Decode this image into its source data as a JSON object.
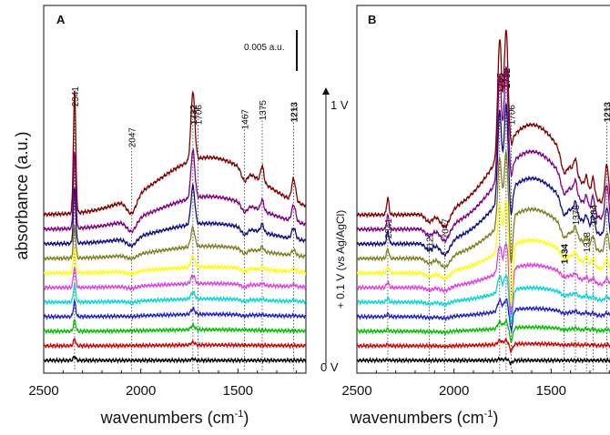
{
  "figure": {
    "ylabel": "absorbance (a.u.)",
    "potential_axis_label": "+ 0.1 V (vs Ag/AgCl)",
    "potential_top": "1 V",
    "potential_bottom": "0 V",
    "scale_bar_label": "0.005 a.u."
  },
  "chart_data": [
    {
      "type": "line",
      "panel_label": "A",
      "xlabel": "wavenumbers (cm",
      "xlabel_sup": "-1",
      "xlabel_close": ")",
      "xlim": [
        2500,
        1150
      ],
      "x_ticks": [
        2500,
        2000,
        1500
      ],
      "peak_labels": [
        {
          "text": "2341",
          "x": 2341,
          "bold": false
        },
        {
          "text": "2047",
          "x": 2047,
          "bold": false
        },
        {
          "text": "1732",
          "x": 1732,
          "bold": true
        },
        {
          "text": "1706",
          "x": 1706,
          "bold": false
        },
        {
          "text": "1467",
          "x": 1467,
          "bold": false
        },
        {
          "text": "1375",
          "x": 1375,
          "bold": false
        },
        {
          "text": "1213",
          "x": 1213,
          "bold": true
        }
      ],
      "series_colors": [
        "#000000",
        "#d40000",
        "#00c000",
        "#2020cc",
        "#00d8d8",
        "#e040e0",
        "#ffff00",
        "#808020",
        "#101080",
        "#800080",
        "#800000"
      ],
      "peaks": [
        {
          "x": 2341,
          "width": 6,
          "amp": [
            0.3,
            0.5,
            0.8,
            1.1,
            1.3,
            1.5,
            1.8,
            2.4,
            4.0,
            5.5,
            9.0
          ]
        },
        {
          "x": 1732,
          "width": 10,
          "amp": [
            0.1,
            0.2,
            0.3,
            0.4,
            0.5,
            0.6,
            0.8,
            1.4,
            2.8,
            3.5,
            5.0
          ]
        },
        {
          "x": 2047,
          "width": 25,
          "amp": [
            0,
            0,
            0,
            -0.05,
            -0.1,
            -0.15,
            -0.2,
            -0.3,
            -0.6,
            -0.9,
            -1.2
          ]
        },
        {
          "x": 1467,
          "width": 15,
          "amp": [
            0,
            0,
            0,
            -0.1,
            -0.15,
            -0.2,
            -0.25,
            -0.35,
            -0.5,
            -0.6,
            -0.8
          ]
        },
        {
          "x": 1375,
          "width": 8,
          "amp": [
            0,
            0,
            0,
            0.05,
            0.1,
            0.15,
            0.2,
            0.35,
            0.6,
            0.8,
            1.2
          ]
        },
        {
          "x": 1213,
          "width": 10,
          "amp": [
            0,
            0,
            0,
            0.05,
            0.1,
            0.15,
            0.25,
            0.4,
            0.8,
            1.2,
            1.6
          ]
        }
      ],
      "broad": {
        "center": 1650,
        "width": 260,
        "amp": [
          0,
          0.02,
          0.04,
          0.06,
          0.08,
          0.1,
          0.15,
          0.3,
          0.5,
          0.8,
          1.4
        ]
      }
    },
    {
      "type": "line",
      "panel_label": "B",
      "xlabel": "wavenumbers (cm",
      "xlabel_sup": "-1",
      "xlabel_close": ")",
      "xlim": [
        2500,
        1150
      ],
      "x_ticks": [
        2500,
        2000,
        1500
      ],
      "peak_labels": [
        {
          "text": "2341",
          "x": 2341,
          "bold": false
        },
        {
          "text": "2127",
          "x": 2127,
          "bold": false
        },
        {
          "text": "2047",
          "x": 2047,
          "bold": false
        },
        {
          "text": "1765",
          "x": 1765,
          "bold": true
        },
        {
          "text": "1732",
          "x": 1732,
          "bold": true
        },
        {
          "text": "1706",
          "x": 1706,
          "bold": false
        },
        {
          "text": "1434",
          "x": 1434,
          "bold": true
        },
        {
          "text": "1375",
          "x": 1375,
          "bold": false
        },
        {
          "text": "1318",
          "x": 1318,
          "bold": false
        },
        {
          "text": "1284",
          "x": 1284,
          "bold": true
        },
        {
          "text": "1213",
          "x": 1213,
          "bold": true
        }
      ],
      "series_colors": [
        "#000000",
        "#d40000",
        "#00c000",
        "#2020cc",
        "#00d8d8",
        "#e040e0",
        "#ffff00",
        "#808020",
        "#101080",
        "#800080",
        "#800000"
      ],
      "peaks": [
        {
          "x": 2341,
          "width": 6,
          "amp": [
            0.05,
            0.1,
            0.15,
            0.2,
            0.3,
            0.4,
            0.5,
            0.7,
            0.9,
            1.0,
            1.2
          ]
        },
        {
          "x": 1765,
          "width": 10,
          "amp": [
            0.1,
            0.3,
            0.5,
            0.8,
            1.2,
            2.0,
            3.5,
            5.0,
            6.5,
            7.5,
            8.5
          ]
        },
        {
          "x": 1732,
          "width": 10,
          "amp": [
            0.1,
            0.3,
            0.5,
            0.8,
            1.2,
            2.0,
            3.5,
            5.0,
            6.5,
            7.5,
            8.5
          ]
        },
        {
          "x": 1706,
          "width": 8,
          "amp": [
            -0.2,
            -0.5,
            -1.0,
            -1.5,
            -2.5,
            -3.5,
            -4.5,
            -3.5,
            -2.0,
            -1.0,
            -0.5
          ]
        },
        {
          "x": 2047,
          "width": 25,
          "amp": [
            0,
            -0.05,
            -0.1,
            -0.15,
            -0.2,
            -0.3,
            -0.5,
            -0.8,
            -1.0,
            -1.1,
            -1.2
          ]
        },
        {
          "x": 2127,
          "width": 20,
          "amp": [
            0,
            0,
            -0.05,
            -0.1,
            -0.15,
            -0.2,
            -0.3,
            -0.4,
            -0.5,
            -0.55,
            -0.6
          ]
        },
        {
          "x": 1434,
          "width": 15,
          "amp": [
            0,
            -0.05,
            -0.1,
            -0.15,
            -0.2,
            -0.3,
            -0.5,
            -0.8,
            -1.0,
            -1.1,
            -1.2
          ]
        },
        {
          "x": 1375,
          "width": 8,
          "amp": [
            0,
            0.05,
            0.1,
            0.15,
            0.2,
            0.3,
            0.5,
            0.7,
            0.9,
            1.0,
            1.1
          ]
        },
        {
          "x": 1318,
          "width": 8,
          "amp": [
            0,
            0.05,
            0.1,
            0.15,
            0.2,
            0.3,
            0.5,
            0.6,
            0.7,
            0.8,
            0.9
          ]
        },
        {
          "x": 1284,
          "width": 8,
          "amp": [
            0,
            0.05,
            0.1,
            0.15,
            0.2,
            0.35,
            0.6,
            0.9,
            1.1,
            1.2,
            1.3
          ]
        },
        {
          "x": 1213,
          "width": 10,
          "amp": [
            0,
            0.05,
            0.1,
            0.2,
            0.3,
            0.5,
            0.8,
            1.5,
            2.2,
            2.7,
            3.0
          ]
        }
      ],
      "broad": {
        "center": 1600,
        "width": 180,
        "amp": [
          0,
          0.05,
          0.1,
          0.2,
          0.35,
          0.55,
          0.8,
          1.2,
          1.6,
          1.9,
          2.2
        ]
      }
    }
  ]
}
